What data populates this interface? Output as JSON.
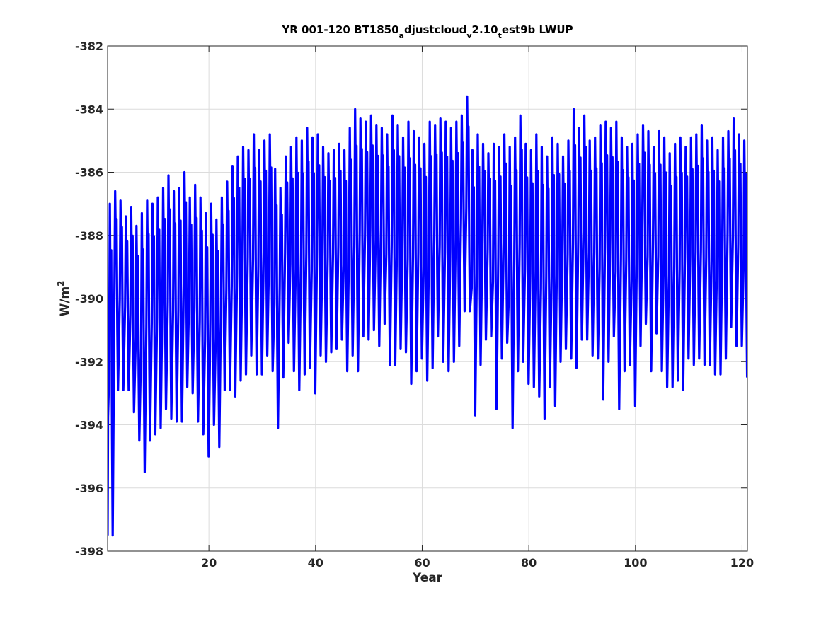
{
  "chart_data": {
    "type": "line",
    "title": {
      "parts": [
        {
          "text": "YR 001-120 BT1850",
          "sub": false
        },
        {
          "text": "a",
          "sub": true
        },
        {
          "text": "djustcloud",
          "sub": false
        },
        {
          "text": "v",
          "sub": true
        },
        {
          "text": "2.10",
          "sub": false
        },
        {
          "text": "t",
          "sub": true
        },
        {
          "text": "est9b LWUP",
          "sub": false
        }
      ]
    },
    "xlabel": "Year",
    "ylabel": {
      "base": "W/m",
      "sup": "2"
    },
    "xlim": [
      1,
      121
    ],
    "ylim": [
      -398,
      -382
    ],
    "xticks": [
      20,
      40,
      60,
      80,
      100,
      120
    ],
    "yticks": [
      -398,
      -396,
      -394,
      -392,
      -390,
      -388,
      -386,
      -384,
      -382
    ],
    "grid": true,
    "series_color": "#0000ff",
    "series": [
      {
        "annual_max": [
          -387.0,
          -386.6,
          -386.9,
          -387.4,
          -387.1,
          -387.7,
          -387.3,
          -386.9,
          -387.0,
          -386.8,
          -386.5,
          -386.1,
          -386.6,
          -386.5,
          -386.0,
          -386.8,
          -386.4,
          -386.8,
          -387.3,
          -387.0,
          -387.5,
          -386.8,
          -386.3,
          -385.8,
          -385.5,
          -385.2,
          -385.3,
          -384.8,
          -385.3,
          -385.0,
          -384.8,
          -385.9,
          -386.5,
          -385.5,
          -385.2,
          -384.9,
          -385.0,
          -384.6,
          -384.9,
          -384.8,
          -385.2,
          -385.4,
          -385.3,
          -385.1,
          -385.3,
          -384.6,
          -384.0,
          -384.3,
          -384.4,
          -384.2,
          -384.5,
          -384.6,
          -384.8,
          -384.2,
          -384.5,
          -384.9,
          -384.4,
          -384.7,
          -384.9,
          -385.1,
          -384.4,
          -384.5,
          -384.3,
          -384.4,
          -384.6,
          -384.4,
          -384.2,
          -383.6,
          -385.3,
          -384.8,
          -385.1,
          -385.4,
          -385.1,
          -385.2,
          -384.8,
          -385.2,
          -384.9,
          -384.2,
          -385.1,
          -385.3,
          -384.8,
          -385.2,
          -385.5,
          -384.9,
          -385.1,
          -385.5,
          -385.0,
          -384.0,
          -384.6,
          -384.2,
          -385.0,
          -384.9,
          -384.5,
          -384.4,
          -384.6,
          -384.4,
          -384.9,
          -385.2,
          -385.1,
          -384.8,
          -384.5,
          -384.7,
          -385.2,
          -384.7,
          -384.9,
          -385.4,
          -385.1,
          -384.9,
          -385.2,
          -384.9,
          -384.8,
          -384.5,
          -385.0,
          -384.9,
          -385.3,
          -384.9,
          -384.7,
          -384.3,
          -384.8,
          -385.0
        ],
        "annual_min": [
          -397.5,
          -392.9,
          -392.9,
          -392.9,
          -393.6,
          -394.5,
          -395.5,
          -394.5,
          -394.3,
          -394.1,
          -393.5,
          -393.8,
          -393.9,
          -393.9,
          -392.8,
          -393.0,
          -393.9,
          -394.3,
          -395.0,
          -394.0,
          -394.7,
          -392.9,
          -392.9,
          -393.1,
          -392.6,
          -392.4,
          -391.8,
          -392.4,
          -392.4,
          -391.8,
          -392.3,
          -394.1,
          -392.5,
          -391.4,
          -392.3,
          -392.9,
          -392.4,
          -392.2,
          -393.0,
          -391.8,
          -392.0,
          -391.7,
          -391.6,
          -391.3,
          -392.3,
          -391.8,
          -392.3,
          -391.2,
          -391.3,
          -391.0,
          -391.5,
          -390.8,
          -392.1,
          -392.1,
          -391.6,
          -391.7,
          -392.7,
          -392.3,
          -391.9,
          -392.6,
          -392.2,
          -391.2,
          -392.0,
          -392.3,
          -392.0,
          -391.5,
          -390.4,
          -390.4,
          -393.7,
          -392.1,
          -391.3,
          -391.2,
          -393.5,
          -391.9,
          -391.4,
          -394.1,
          -392.3,
          -392.0,
          -392.7,
          -392.8,
          -393.1,
          -393.8,
          -392.8,
          -393.4,
          -392.0,
          -391.6,
          -391.9,
          -392.2,
          -391.3,
          -391.3,
          -391.8,
          -391.9,
          -393.2,
          -392.0,
          -391.2,
          -393.5,
          -392.3,
          -392.1,
          -393.4,
          -391.5,
          -390.8,
          -392.3,
          -391.1,
          -392.3,
          -392.8,
          -392.8,
          -392.6,
          -392.9,
          -391.9,
          -392.1,
          -391.9,
          -392.1,
          -392.1,
          -392.4,
          -392.4,
          -391.9,
          -390.9,
          -391.5,
          -391.5,
          -392.5
        ]
      }
    ]
  }
}
